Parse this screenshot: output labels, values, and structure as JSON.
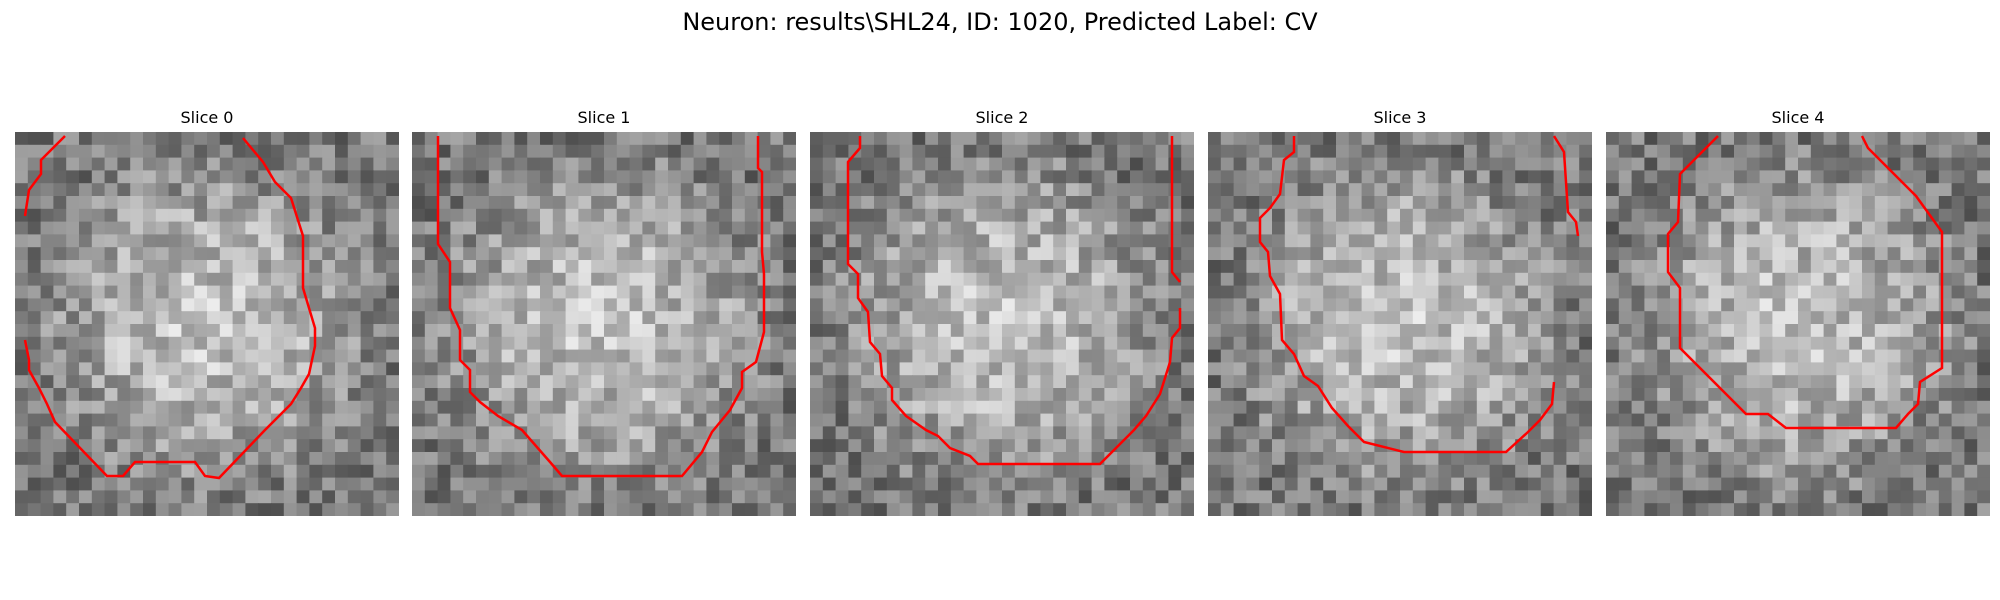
{
  "figure": {
    "title": "Neuron: results\\SHL24, ID: 1020, Predicted Label: CV",
    "contour_color": "#ff0000"
  },
  "slices": [
    {
      "label": "Slice 0"
    },
    {
      "label": "Slice 1"
    },
    {
      "label": "Slice 2"
    },
    {
      "label": "Slice 3"
    },
    {
      "label": "Slice 4"
    }
  ]
}
